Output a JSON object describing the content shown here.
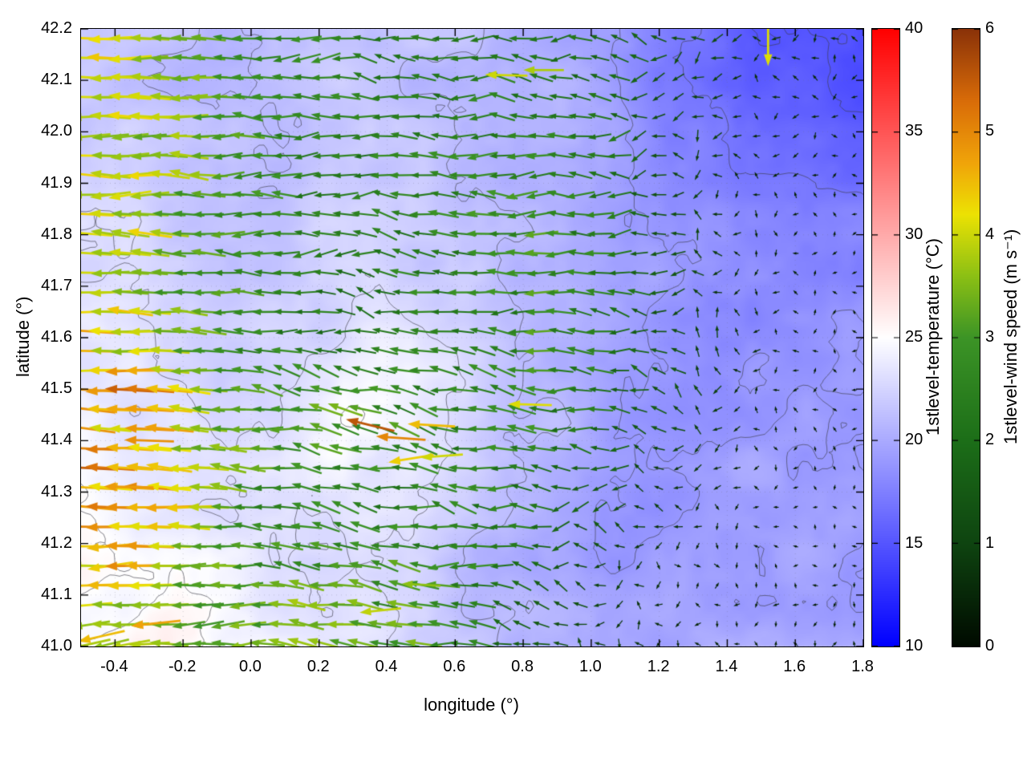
{
  "figure": {
    "background": "#ffffff"
  },
  "chart_data": {
    "type": "heatmap",
    "subtype": "wind-vector-field-over-temperature-heatmap-with-contours",
    "title": "",
    "xlabel": "longitude (°)",
    "ylabel": "latitude (°)",
    "xlim": [
      -0.5,
      1.8
    ],
    "ylim": [
      41.0,
      42.2
    ],
    "grid": "dotted",
    "x_ticks": [
      {
        "v": -0.4,
        "label": "-0.4"
      },
      {
        "v": -0.2,
        "label": "-0.2"
      },
      {
        "v": 0.0,
        "label": "0.0"
      },
      {
        "v": 0.2,
        "label": "0.2"
      },
      {
        "v": 0.4,
        "label": "0.4"
      },
      {
        "v": 0.6,
        "label": "0.6"
      },
      {
        "v": 0.8,
        "label": "0.8"
      },
      {
        "v": 1.0,
        "label": "1.0"
      },
      {
        "v": 1.2,
        "label": "1.2"
      },
      {
        "v": 1.4,
        "label": "1.4"
      },
      {
        "v": 1.6,
        "label": "1.6"
      },
      {
        "v": 1.8,
        "label": "1.8"
      }
    ],
    "y_ticks": [
      {
        "v": 41.0,
        "label": "41.0"
      },
      {
        "v": 41.1,
        "label": "41.1"
      },
      {
        "v": 41.2,
        "label": "41.2"
      },
      {
        "v": 41.3,
        "label": "41.3"
      },
      {
        "v": 41.4,
        "label": "41.4"
      },
      {
        "v": 41.5,
        "label": "41.5"
      },
      {
        "v": 41.6,
        "label": "41.6"
      },
      {
        "v": 41.7,
        "label": "41.7"
      },
      {
        "v": 41.8,
        "label": "41.8"
      },
      {
        "v": 41.9,
        "label": "41.9"
      },
      {
        "v": 42.0,
        "label": "42.0"
      },
      {
        "v": 42.1,
        "label": "42.1"
      },
      {
        "v": 42.2,
        "label": "42.2"
      }
    ],
    "contour_levels": [
      15,
      17,
      19,
      21,
      23,
      25
    ],
    "style": {
      "contour_color": "rgba(60,60,72,0.70)",
      "grid_color": "rgba(110,110,130,0.30)",
      "axis_color": "#000000"
    },
    "colorbars": [
      {
        "label": "1stlevel-temperature (°C)",
        "range": [
          10,
          40
        ],
        "ticks": [
          {
            "v": 10,
            "label": "10"
          },
          {
            "v": 15,
            "label": "15"
          },
          {
            "v": 20,
            "label": "20"
          },
          {
            "v": 25,
            "label": "25"
          },
          {
            "v": 30,
            "label": "30"
          },
          {
            "v": 35,
            "label": "35"
          },
          {
            "v": 40,
            "label": "40"
          }
        ],
        "stops": [
          {
            "v": 10,
            "c": "#0000ff"
          },
          {
            "v": 25,
            "c": "#ffffff"
          },
          {
            "v": 40,
            "c": "#ff0000"
          }
        ]
      },
      {
        "label": "1stlevel-wind speed (m s⁻¹)",
        "range": [
          0,
          6
        ],
        "ticks": [
          {
            "v": 0,
            "label": "0"
          },
          {
            "v": 1,
            "label": "1"
          },
          {
            "v": 2,
            "label": "2"
          },
          {
            "v": 3,
            "label": "3"
          },
          {
            "v": 4,
            "label": "4"
          },
          {
            "v": 5,
            "label": "5"
          },
          {
            "v": 6,
            "label": "6"
          }
        ],
        "stops": [
          {
            "v": 0.0,
            "c": "#000a00"
          },
          {
            "v": 1.0,
            "c": "#0e4410"
          },
          {
            "v": 2.0,
            "c": "#1c6e18"
          },
          {
            "v": 3.0,
            "c": "#3c9426"
          },
          {
            "v": 3.6,
            "c": "#8cc014"
          },
          {
            "v": 4.2,
            "c": "#ece203"
          },
          {
            "v": 4.7,
            "c": "#f0a409"
          },
          {
            "v": 5.3,
            "c": "#d96c08"
          },
          {
            "v": 6.0,
            "c": "#8a3208"
          }
        ]
      }
    ],
    "temperature_grid": {
      "nx": 13,
      "ny": 9,
      "order": "rows north(42.2) to south(41.0), cols west(-0.5) to east(1.8)",
      "values": [
        [
          22.0,
          21.5,
          21.0,
          21.5,
          22.0,
          21.5,
          21.0,
          20.5,
          19.0,
          17.0,
          15.5,
          15.0,
          14.5
        ],
        [
          22.0,
          21.5,
          21.0,
          21.5,
          21.5,
          21.0,
          21.0,
          20.5,
          19.5,
          18.0,
          16.5,
          15.5,
          15.0
        ],
        [
          22.5,
          22.0,
          21.5,
          21.5,
          22.0,
          21.5,
          21.0,
          20.5,
          19.5,
          18.5,
          18.0,
          17.5,
          17.0
        ],
        [
          23.0,
          22.5,
          22.0,
          22.0,
          22.5,
          22.0,
          21.5,
          21.0,
          20.0,
          19.0,
          18.5,
          18.0,
          18.0
        ],
        [
          23.5,
          23.0,
          22.5,
          22.5,
          23.0,
          24.0,
          22.0,
          21.0,
          20.0,
          19.0,
          18.5,
          18.5,
          18.5
        ],
        [
          24.0,
          23.5,
          23.0,
          23.5,
          25.5,
          24.0,
          22.0,
          21.0,
          19.5,
          19.0,
          19.0,
          19.0,
          19.0
        ],
        [
          24.5,
          24.0,
          23.5,
          23.0,
          23.5,
          23.0,
          21.5,
          20.5,
          19.5,
          19.0,
          19.5,
          19.5,
          19.0
        ],
        [
          25.0,
          24.5,
          24.0,
          23.5,
          23.0,
          22.5,
          21.0,
          20.0,
          19.5,
          19.5,
          19.5,
          19.5,
          19.5
        ],
        [
          25.5,
          26.0,
          25.0,
          24.0,
          23.5,
          22.5,
          21.5,
          20.5,
          20.0,
          20.0,
          20.0,
          20.0,
          19.5
        ]
      ]
    },
    "wind_grid": {
      "nx": 13,
      "ny": 9,
      "order": "rows north(42.2) to south(41.0), cols west(-0.5) to east(1.8); u east+, v north+ (m/s)",
      "u": [
        [
          -4.2,
          -3.8,
          -3.2,
          -2.6,
          -2.3,
          -2.1,
          -2.2,
          -2.1,
          -1.8,
          -1.3,
          -0.9,
          -0.7,
          -0.6
        ],
        [
          -4.0,
          -3.8,
          -3.3,
          -2.7,
          -2.4,
          -2.2,
          -2.3,
          -2.4,
          -2.0,
          -1.2,
          -0.7,
          -0.5,
          -0.4
        ],
        [
          -4.1,
          -3.7,
          -3.1,
          -2.6,
          -2.3,
          -2.4,
          -2.5,
          -2.6,
          -2.2,
          -1.1,
          -0.6,
          -0.4,
          -0.3
        ],
        [
          -4.2,
          -3.6,
          -3.0,
          -2.5,
          -2.2,
          -2.3,
          -2.6,
          -2.7,
          -2.4,
          -1.3,
          -0.6,
          -0.4,
          -0.3
        ],
        [
          -4.1,
          -3.7,
          -3.0,
          -2.4,
          -2.0,
          -2.2,
          -2.5,
          -2.6,
          -2.3,
          -1.4,
          -0.7,
          -0.4,
          -0.3
        ],
        [
          -4.4,
          -4.8,
          -3.4,
          -2.6,
          -3.0,
          -2.6,
          -2.4,
          -2.5,
          -2.0,
          -1.2,
          -0.6,
          -0.4,
          -0.3
        ],
        [
          -4.6,
          -4.7,
          -3.6,
          -2.8,
          -2.4,
          -2.3,
          -2.4,
          -2.2,
          -1.4,
          -0.8,
          -0.5,
          -0.3,
          -0.3
        ],
        [
          -4.2,
          -4.0,
          -3.4,
          -2.9,
          -3.0,
          -2.7,
          -2.4,
          -1.8,
          -1.0,
          -0.5,
          -0.4,
          -0.3,
          -0.3
        ],
        [
          -3.6,
          -3.4,
          -3.1,
          -3.2,
          -3.3,
          -3.1,
          -2.3,
          -1.4,
          -0.8,
          -0.5,
          -0.4,
          -0.4,
          -0.4
        ]
      ],
      "v": [
        [
          0.1,
          0.0,
          0.0,
          0.1,
          0.0,
          -0.1,
          0.0,
          0.1,
          0.0,
          0.0,
          -0.1,
          0.0,
          0.0
        ],
        [
          0.0,
          0.1,
          0.0,
          0.0,
          0.2,
          0.1,
          -0.1,
          0.0,
          0.1,
          0.0,
          0.0,
          0.0,
          0.0
        ],
        [
          0.1,
          0.0,
          0.2,
          0.1,
          0.0,
          0.3,
          0.2,
          -0.2,
          0.0,
          0.1,
          0.0,
          0.0,
          0.0
        ],
        [
          0.0,
          0.2,
          0.1,
          0.0,
          0.3,
          0.4,
          0.2,
          0.0,
          -0.2,
          0.0,
          0.1,
          0.0,
          0.0
        ],
        [
          0.1,
          0.0,
          0.2,
          0.3,
          0.2,
          0.5,
          0.3,
          0.2,
          0.0,
          0.1,
          0.0,
          0.0,
          0.0
        ],
        [
          0.2,
          0.3,
          0.2,
          0.4,
          0.8,
          0.5,
          0.3,
          0.4,
          0.2,
          0.0,
          0.0,
          0.0,
          0.0
        ],
        [
          0.1,
          0.2,
          0.3,
          0.2,
          0.4,
          0.3,
          0.5,
          0.3,
          0.1,
          0.0,
          0.0,
          0.0,
          0.0
        ],
        [
          -0.2,
          0.0,
          0.1,
          0.3,
          0.2,
          0.4,
          0.3,
          0.2,
          0.0,
          0.0,
          0.0,
          0.0,
          0.0
        ],
        [
          -0.6,
          -0.4,
          -0.2,
          0.0,
          0.3,
          0.5,
          0.4,
          0.2,
          0.1,
          0.0,
          0.0,
          0.0,
          0.0
        ]
      ]
    },
    "special_arrows": [
      {
        "lon": 0.35,
        "lat": 41.43,
        "u": -5.4,
        "v": 1.3
      },
      {
        "lon": 0.44,
        "lat": 41.405,
        "u": -5.0,
        "v": 0.35
      },
      {
        "lon": 0.53,
        "lat": 41.43,
        "u": -4.5,
        "v": 0.25
      },
      {
        "lon": 0.47,
        "lat": 41.365,
        "u": -4.3,
        "v": -0.7
      },
      {
        "lon": 0.56,
        "lat": 41.37,
        "u": -4.0,
        "v": -0.3
      },
      {
        "lon": -0.3,
        "lat": 41.4,
        "u": -4.9,
        "v": 0.15
      },
      {
        "lon": -0.36,
        "lat": 41.31,
        "u": -4.8,
        "v": 0.1
      },
      {
        "lon": -0.28,
        "lat": 41.045,
        "u": -4.7,
        "v": -0.5
      },
      {
        "lon": -0.44,
        "lat": 41.02,
        "u": -4.4,
        "v": -1.0
      },
      {
        "lon": 1.52,
        "lat": 42.17,
        "u": 0.0,
        "v": -4.1
      },
      {
        "lon": 0.75,
        "lat": 42.11,
        "u": -4.0,
        "v": 0.1
      },
      {
        "lon": 0.86,
        "lat": 42.12,
        "u": -3.8,
        "v": 0.0
      },
      {
        "lon": 0.38,
        "lat": 41.07,
        "u": -3.9,
        "v": -0.4
      },
      {
        "lon": 0.5,
        "lat": 41.12,
        "u": -3.6,
        "v": 0.2
      },
      {
        "lon": 0.82,
        "lat": 41.47,
        "u": -4.1,
        "v": 0.1
      }
    ]
  }
}
